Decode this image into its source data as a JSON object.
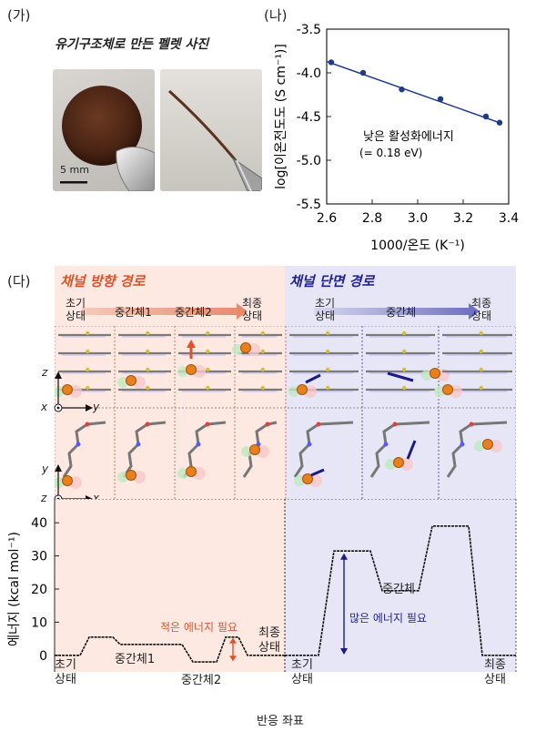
{
  "panel_a": {
    "label": "(가)",
    "title": "유기구조체로 만든 펠렛 사진",
    "scale_bar": "5 mm"
  },
  "panel_b": {
    "label": "(나)",
    "annotation_line1": "낮은 활성화에너지",
    "annotation_line2": "(= 0.18 eV)",
    "chart_data": {
      "type": "scatter",
      "xlabel": "1000/온도 (K⁻¹)",
      "ylabel": "log[이온전도도 (S cm⁻¹)]",
      "xlim": [
        2.6,
        3.4
      ],
      "ylim": [
        -5.5,
        -3.5
      ],
      "xticks": [
        "2.6",
        "2.8",
        "3.0",
        "3.2",
        "3.4"
      ],
      "yticks": [
        "-3.5",
        "-4.0",
        "-4.5",
        "-5.0",
        "-5.5"
      ],
      "points": [
        {
          "x": 2.62,
          "y": -3.88
        },
        {
          "x": 2.76,
          "y": -4.0
        },
        {
          "x": 2.93,
          "y": -4.19
        },
        {
          "x": 3.1,
          "y": -4.3
        },
        {
          "x": 3.3,
          "y": -4.5
        },
        {
          "x": 3.36,
          "y": -4.57
        }
      ],
      "fit_line": [
        {
          "x": 2.6,
          "y": -3.87
        },
        {
          "x": 3.37,
          "y": -4.58
        }
      ],
      "colors": {
        "points": "#1f3a8a",
        "line": "#1f3a8a"
      }
    }
  },
  "panel_c": {
    "label": "(다)",
    "channel_title": "채널 방향 경로",
    "cross_title": "채널 단면 경로",
    "channel_states": [
      "초기\n상태",
      "중간체1",
      "중간체2",
      "최종\n상태"
    ],
    "cross_states": [
      "초기\n상태",
      "중간체",
      "최종\n상태"
    ],
    "axes_top": {
      "z": "z",
      "x": "x",
      "y": "y"
    },
    "axes_bottom": {
      "y": "y",
      "z": "z",
      "x": "x"
    },
    "colors": {
      "channel_bg": "#fde9e2",
      "cross_bg": "#e6e6f7",
      "channel_title": "#d9552b",
      "cross_title": "#23238e",
      "orange_arrow": "#e2502a",
      "blue_arrow": "#1a1a8c"
    }
  },
  "energy": {
    "ylabel": "에너지 (kcal mol⁻¹)",
    "xlabel": "반응 좌표",
    "yticks": [
      "0",
      "10",
      "20",
      "30",
      "40"
    ],
    "ylim": [
      -5,
      45
    ],
    "left_labels": {
      "initial": "초기\n상태",
      "int1": "중간체1",
      "int2": "중간체2",
      "final": "최종\n상태",
      "note": "적은 에너지 필요"
    },
    "right_labels": {
      "initial": "초기\n상태",
      "int": "중간체",
      "final": "최종\n상태",
      "note": "많은 에너지 필요"
    },
    "chart_data": {
      "type": "line",
      "series": [
        {
          "levels": [
            0,
            5.5,
            3.3,
            3.3,
            -2,
            5.5,
            0
          ]
        },
        {
          "levels": [
            0,
            31.5,
            19.5,
            39,
            0
          ]
        }
      ]
    }
  }
}
